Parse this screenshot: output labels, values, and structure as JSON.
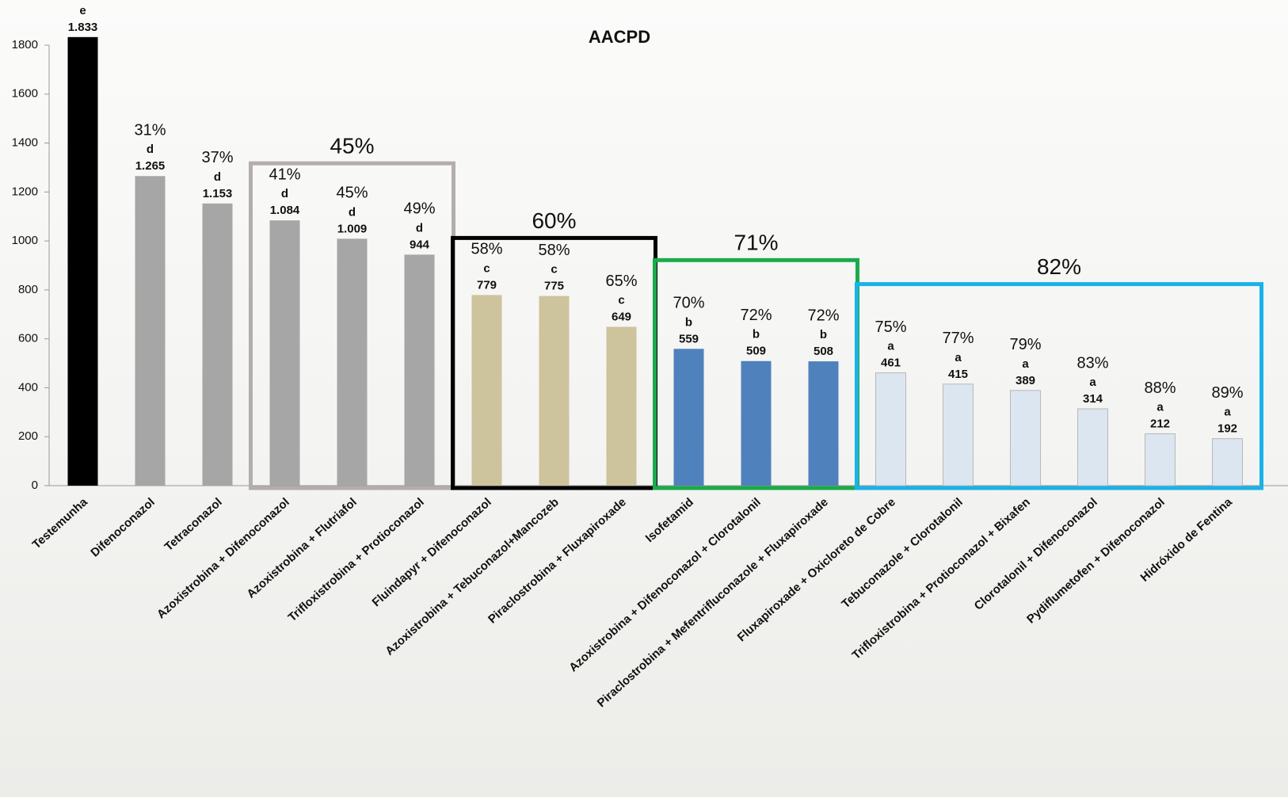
{
  "chart_data": {
    "type": "bar",
    "title": "AACPD",
    "categories": [
      "Testemunha",
      "Difenoconazol",
      "Tetraconazol",
      "Azoxistrobina + Difenoconazol",
      "Azoxistrobina + Flutriafol",
      "Trifloxistrobina + Protioconazol",
      "Fluindapyr + Difenoconazol",
      "Azoxistrobina + Tebuconazol+Mancozeb",
      "Piraclostrobina + Fluxapiroxade",
      "Isofetamid",
      "Azoxistrobina + Difenoconazol + Clorotalonil",
      "Piraclostrobina + Mefentrifluconazole + Fluxapiroxade",
      "Fluxapiroxade + Oxicloreto de Cobre",
      "Tebuconazole + Clorotalonil",
      "Trifloxistrobina + Protioconazol + Bixafen",
      "Clorotalonil + Difenoconazol",
      "Pydiflumetofen + Difenoconazol",
      "Hidróxido de Fentina"
    ],
    "values": [
      1833,
      1265,
      1153,
      1084,
      1009,
      944,
      779,
      775,
      649,
      559,
      509,
      508,
      461,
      415,
      389,
      314,
      212,
      192
    ],
    "value_labels": [
      "1.833",
      "1.265",
      "1.153",
      "1.084",
      "1.009",
      "944",
      "779",
      "775",
      "649",
      "559",
      "509",
      "508",
      "461",
      "415",
      "389",
      "314",
      "212",
      "192"
    ],
    "letters": [
      "e",
      "d",
      "d",
      "d",
      "d",
      "d",
      "c",
      "c",
      "c",
      "b",
      "b",
      "b",
      "a",
      "a",
      "a",
      "a",
      "a",
      "a"
    ],
    "reductions": [
      null,
      "31%",
      "37%",
      "41%",
      "45%",
      "49%",
      "58%",
      "58%",
      "65%",
      "70%",
      "72%",
      "72%",
      "75%",
      "77%",
      "79%",
      "83%",
      "88%",
      "89%"
    ],
    "colors": [
      "#000000",
      "#a6a6a6",
      "#a6a6a6",
      "#a6a6a6",
      "#a6a6a6",
      "#a6a6a6",
      "#cdc39c",
      "#cdc39c",
      "#cdc39c",
      "#4f81bd",
      "#4f81bd",
      "#4f81bd",
      "#dce6f0",
      "#dce6f0",
      "#dce6f0",
      "#dce6f0",
      "#dce6f0",
      "#dce6f0"
    ],
    "groups": [
      {
        "label": "45%",
        "first": "Azoxistrobina + Difenoconazol",
        "last": "Trifloxistrobina + Protioconazol",
        "color": "#b3adad"
      },
      {
        "label": "60%",
        "first": "Fluindapyr + Difenoconazol",
        "last": "Piraclostrobina + Fluxapiroxade",
        "color": "#000000"
      },
      {
        "label": "71%",
        "first": "Isofetamid",
        "last": "Piraclostrobina + Mefentrifluconazole + Fluxapiroxade",
        "color": "#1aab4a"
      },
      {
        "label": "82%",
        "first": "Fluxapiroxade + Oxicloreto de Cobre",
        "last": "Hidróxido de Fentina",
        "color": "#1ab2e8"
      }
    ],
    "ylim": [
      0,
      1800
    ],
    "yticks": [
      0,
      200,
      400,
      600,
      800,
      1000,
      1200,
      1400,
      1600,
      1800
    ]
  }
}
